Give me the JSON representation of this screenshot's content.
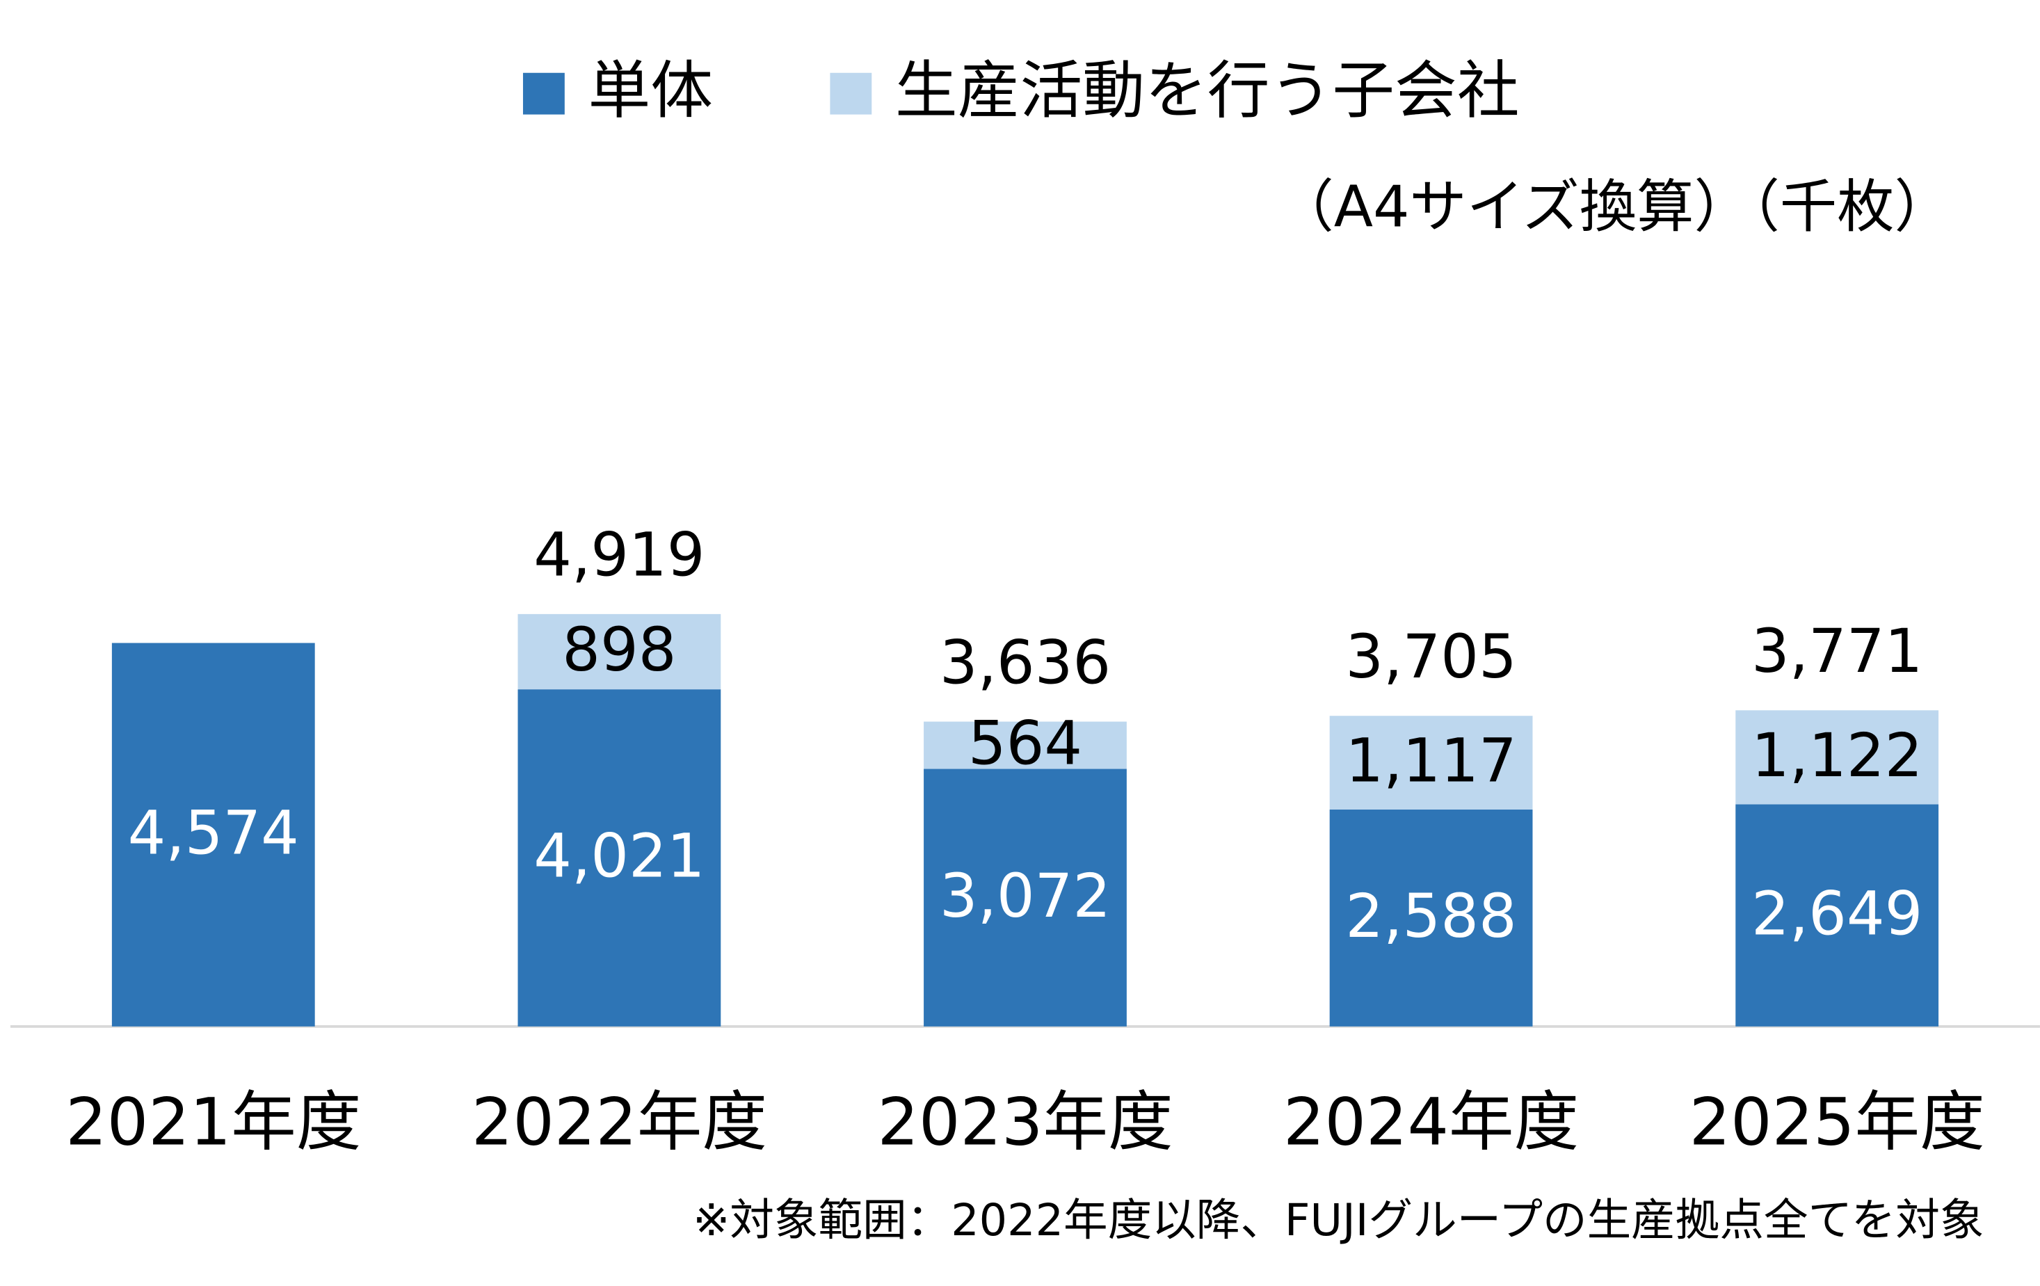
{
  "chart_data": {
    "type": "stacked-bar",
    "subtitle": "（A4サイズ換算）（千枚）",
    "note": "※対象範囲：2022年度以降、FUJIグループの生産拠点全てを対象",
    "categories": [
      "2021年度",
      "2022年度",
      "2023年度",
      "2024年度",
      "2025年度"
    ],
    "series": [
      {
        "name": "単体",
        "color": "#2e75b6",
        "label_color": "#ffffff",
        "values": [
          4574,
          4021,
          3072,
          2588,
          2649
        ],
        "value_labels": [
          "4,574",
          "4,021",
          "3,072",
          "2,588",
          "2,649"
        ]
      },
      {
        "name": "生産活動を行う子会社",
        "color": "#bdd7ee",
        "label_color": "#000000",
        "values": [
          null,
          898,
          564,
          1117,
          1122
        ],
        "value_labels": [
          null,
          "898",
          "564",
          "1,117",
          "1,122"
        ]
      }
    ],
    "totals": {
      "values": [
        null,
        4919,
        3636,
        3705,
        3771
      ],
      "value_labels": [
        null,
        "4,919",
        "3,636",
        "3,705",
        "3,771"
      ]
    }
  }
}
